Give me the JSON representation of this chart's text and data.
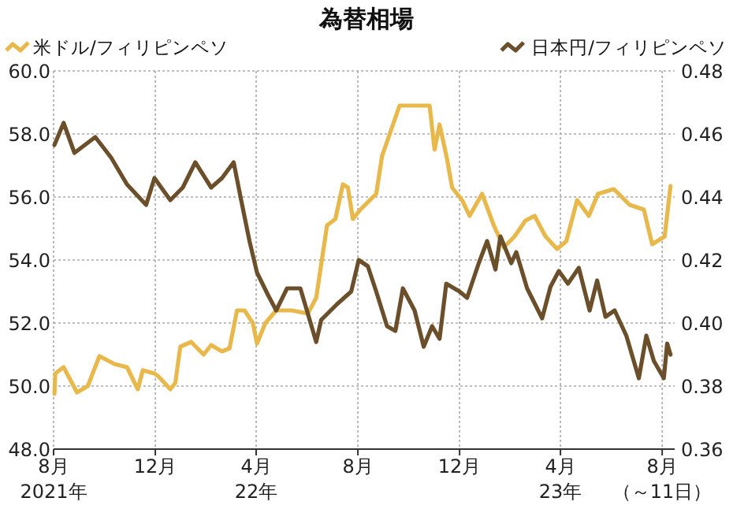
{
  "chart_data": {
    "type": "line",
    "title": "為替相場",
    "legend": "top",
    "grid": true,
    "xlim": [
      "2021-08-01",
      "2023-08-16"
    ],
    "xticks": [
      {
        "value": "2021-08-01",
        "label": "8月\n2021年"
      },
      {
        "value": "2021-12-01",
        "label": "12月"
      },
      {
        "value": "2022-04-01",
        "label": "4月\n22年"
      },
      {
        "value": "2022-08-01",
        "label": "8月"
      },
      {
        "value": "2022-12-01",
        "label": "12月"
      },
      {
        "value": "2023-04-01",
        "label": "4月\n23年"
      },
      {
        "value": "2023-08-01",
        "label": "8月（～11日）"
      }
    ],
    "ylim": [
      48,
      60
    ],
    "yticks": [
      {
        "value": 48,
        "label": "48.0"
      },
      {
        "value": 50,
        "label": "50.0"
      },
      {
        "value": 52,
        "label": "52.0"
      },
      {
        "value": 54,
        "label": "54.0"
      },
      {
        "value": 56,
        "label": "56.0"
      },
      {
        "value": 58,
        "label": "58.0"
      },
      {
        "value": 60,
        "label": "60.0"
      }
    ],
    "y2lim": [
      0.36,
      0.48
    ],
    "y2ticks": [
      {
        "value": 0.36,
        "label": "0.36"
      },
      {
        "value": 0.38,
        "label": "0.38"
      },
      {
        "value": 0.4,
        "label": "0.40"
      },
      {
        "value": 0.42,
        "label": "0.42"
      },
      {
        "value": 0.44,
        "label": "0.44"
      },
      {
        "value": 0.46,
        "label": "0.46"
      },
      {
        "value": 0.48,
        "label": "0.48"
      }
    ],
    "series": [
      {
        "name": "米ドル/フィリピンペソ",
        "color": "#e8b84a",
        "x": [
          "2021-08-02",
          "2021-08-03",
          "2021-08-13",
          "2021-08-29",
          "2021-09-11",
          "2021-09-25",
          "2021-10-13",
          "2021-10-28",
          "2021-11-10",
          "2021-11-16",
          "2021-11-30",
          "2021-12-05",
          "2021-12-19",
          "2021-12-25",
          "2021-12-31",
          "2022-01-13",
          "2022-01-28",
          "2022-02-06",
          "2022-02-19",
          "2022-02-28",
          "2022-03-09",
          "2022-03-18",
          "2022-03-28",
          "2022-04-02",
          "2022-04-12",
          "2022-04-25",
          "2022-05-14",
          "2022-06-02",
          "2022-06-12",
          "2022-06-25",
          "2022-07-05",
          "2022-07-14",
          "2022-07-20",
          "2022-07-26",
          "2022-08-04",
          "2022-08-23",
          "2022-08-30",
          "2022-09-20",
          "2022-10-13",
          "2022-10-26",
          "2022-11-01",
          "2022-11-07",
          "2022-11-16",
          "2022-11-22",
          "2022-12-04",
          "2022-12-13",
          "2022-12-28",
          "2023-01-11",
          "2023-01-23",
          "2023-02-05",
          "2023-02-18",
          "2023-03-01",
          "2023-03-14",
          "2023-03-28",
          "2023-04-08",
          "2023-04-21",
          "2023-05-05",
          "2023-05-16",
          "2023-06-04",
          "2023-06-23",
          "2023-07-10",
          "2023-07-20",
          "2023-08-04",
          "2023-08-11"
        ],
        "values": [
          49.75,
          50.4,
          50.6,
          49.8,
          50.0,
          50.95,
          50.7,
          50.6,
          49.9,
          50.5,
          50.4,
          50.3,
          49.9,
          50.1,
          51.25,
          51.4,
          51.0,
          51.3,
          51.1,
          51.2,
          52.4,
          52.4,
          52.0,
          51.35,
          52.0,
          52.4,
          52.4,
          52.3,
          52.8,
          55.1,
          55.3,
          56.4,
          56.3,
          55.3,
          55.6,
          56.1,
          57.3,
          58.9,
          58.9,
          58.9,
          57.5,
          58.3,
          57.2,
          56.3,
          55.9,
          55.4,
          56.1,
          55.1,
          54.4,
          54.75,
          55.25,
          55.4,
          54.75,
          54.35,
          54.6,
          55.9,
          55.4,
          56.1,
          56.25,
          55.75,
          55.6,
          54.5,
          54.75,
          56.35
        ]
      },
      {
        "name": "日本円/フィリピンペソ",
        "color": "#6b4f2a",
        "axis": "y2",
        "x": [
          "2021-08-02",
          "2021-08-13",
          "2021-08-26",
          "2021-09-20",
          "2021-10-09",
          "2021-10-28",
          "2021-11-20",
          "2021-11-30",
          "2021-12-19",
          "2022-01-03",
          "2022-01-18",
          "2022-02-06",
          "2022-02-19",
          "2022-03-05",
          "2022-03-14",
          "2022-03-24",
          "2022-04-02",
          "2022-04-15",
          "2022-04-25",
          "2022-05-08",
          "2022-05-24",
          "2022-06-12",
          "2022-06-18",
          "2022-07-07",
          "2022-07-24",
          "2022-08-02",
          "2022-08-13",
          "2022-08-23",
          "2022-09-05",
          "2022-09-15",
          "2022-09-24",
          "2022-10-08",
          "2022-10-19",
          "2022-10-29",
          "2022-11-07",
          "2022-11-15",
          "2022-12-01",
          "2022-12-10",
          "2022-12-24",
          "2023-01-03",
          "2023-01-13",
          "2023-01-19",
          "2023-02-01",
          "2023-02-07",
          "2023-02-20",
          "2023-03-10",
          "2023-03-20",
          "2023-03-30",
          "2023-04-10",
          "2023-04-23",
          "2023-05-06",
          "2023-05-15",
          "2023-05-25",
          "2023-06-05",
          "2023-06-19",
          "2023-07-04",
          "2023-07-13",
          "2023-07-22",
          "2023-08-03",
          "2023-08-07",
          "2023-08-11"
        ],
        "values": [
          0.4565,
          0.4635,
          0.454,
          0.459,
          0.4525,
          0.444,
          0.4375,
          0.446,
          0.439,
          0.443,
          0.451,
          0.443,
          0.446,
          0.451,
          0.439,
          0.426,
          0.416,
          0.409,
          0.404,
          0.411,
          0.411,
          0.394,
          0.401,
          0.406,
          0.41,
          0.42,
          0.418,
          0.41,
          0.399,
          0.3975,
          0.411,
          0.404,
          0.3925,
          0.399,
          0.395,
          0.4125,
          0.41,
          0.408,
          0.419,
          0.426,
          0.417,
          0.4275,
          0.419,
          0.4225,
          0.411,
          0.4015,
          0.4115,
          0.4165,
          0.4125,
          0.4175,
          0.404,
          0.4135,
          0.402,
          0.404,
          0.396,
          0.3825,
          0.396,
          0.388,
          0.3825,
          0.3935,
          0.39
        ]
      }
    ]
  }
}
